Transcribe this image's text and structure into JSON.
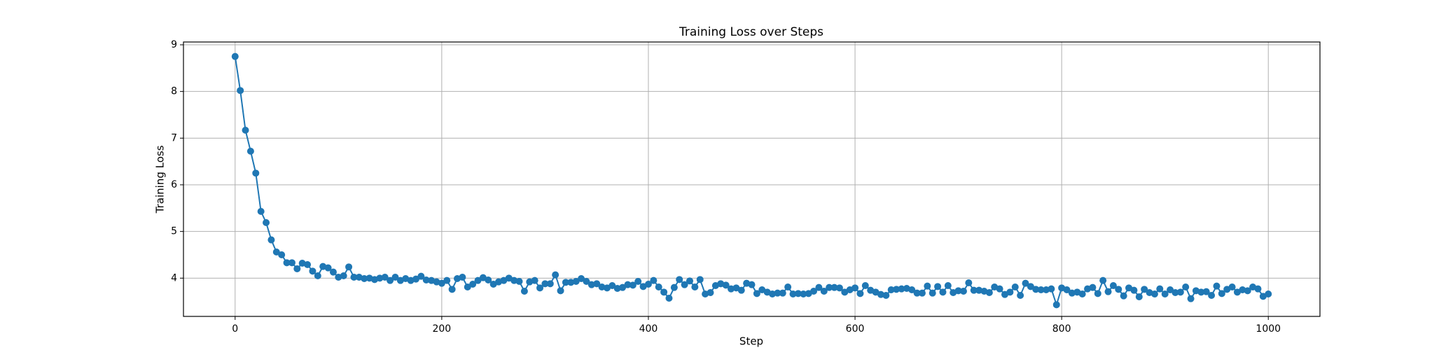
{
  "chart_data": {
    "type": "line",
    "title": "Training Loss over Steps",
    "xlabel": "Step",
    "ylabel": "Training Loss",
    "color": "#1f77b4",
    "grid": true,
    "markers": true,
    "xlim": [
      -50,
      1050
    ],
    "ylim": [
      3.18,
      9.06
    ],
    "xticks": [
      0,
      200,
      400,
      600,
      800,
      1000
    ],
    "yticks": [
      4,
      5,
      6,
      7,
      8,
      9
    ],
    "x": [
      0,
      5,
      10,
      15,
      20,
      25,
      30,
      35,
      40,
      45,
      50,
      55,
      60,
      65,
      70,
      75,
      80,
      85,
      90,
      95,
      100,
      105,
      110,
      115,
      120,
      125,
      130,
      135,
      140,
      145,
      150,
      155,
      160,
      165,
      170,
      175,
      180,
      185,
      190,
      195,
      200,
      205,
      210,
      215,
      220,
      225,
      230,
      235,
      240,
      245,
      250,
      255,
      260,
      265,
      270,
      275,
      280,
      285,
      290,
      295,
      300,
      305,
      310,
      315,
      320,
      325,
      330,
      335,
      340,
      345,
      350,
      355,
      360,
      365,
      370,
      375,
      380,
      385,
      390,
      395,
      400,
      405,
      410,
      415,
      420,
      425,
      430,
      435,
      440,
      445,
      450,
      455,
      460,
      465,
      470,
      475,
      480,
      485,
      490,
      495,
      500,
      505,
      510,
      515,
      520,
      525,
      530,
      535,
      540,
      545,
      550,
      555,
      560,
      565,
      570,
      575,
      580,
      585,
      590,
      595,
      600,
      605,
      610,
      615,
      620,
      625,
      630,
      635,
      640,
      645,
      650,
      655,
      660,
      665,
      670,
      675,
      680,
      685,
      690,
      695,
      700,
      705,
      710,
      715,
      720,
      725,
      730,
      735,
      740,
      745,
      750,
      755,
      760,
      765,
      770,
      775,
      780,
      785,
      790,
      795,
      800,
      805,
      810,
      815,
      820,
      825,
      830,
      835,
      840,
      845,
      850,
      855,
      860,
      865,
      870,
      875,
      880,
      885,
      890,
      895,
      900,
      905,
      910,
      915,
      920,
      925,
      930,
      935,
      940,
      945,
      950,
      955,
      960,
      965,
      970,
      975,
      980,
      985,
      990,
      995,
      1000
    ],
    "values": [
      8.75,
      8.02,
      7.17,
      6.72,
      6.25,
      5.43,
      5.19,
      4.82,
      4.56,
      4.5,
      4.33,
      4.33,
      4.2,
      4.32,
      4.29,
      4.15,
      4.05,
      4.25,
      4.22,
      4.13,
      4.02,
      4.05,
      4.24,
      4.02,
      4.02,
      3.99,
      4.0,
      3.97,
      4.0,
      4.02,
      3.95,
      4.02,
      3.95,
      3.99,
      3.95,
      3.98,
      4.04,
      3.96,
      3.95,
      3.92,
      3.89,
      3.95,
      3.76,
      3.99,
      4.02,
      3.81,
      3.87,
      3.95,
      4.01,
      3.96,
      3.87,
      3.92,
      3.95,
      4.0,
      3.95,
      3.93,
      3.72,
      3.92,
      3.95,
      3.79,
      3.88,
      3.88,
      4.07,
      3.73,
      3.91,
      3.91,
      3.93,
      3.99,
      3.93,
      3.86,
      3.88,
      3.81,
      3.79,
      3.84,
      3.78,
      3.8,
      3.86,
      3.85,
      3.93,
      3.82,
      3.87,
      3.95,
      3.81,
      3.7,
      3.57,
      3.8,
      3.97,
      3.86,
      3.94,
      3.81,
      3.97,
      3.66,
      3.69,
      3.84,
      3.88,
      3.85,
      3.77,
      3.79,
      3.74,
      3.89,
      3.86,
      3.67,
      3.75,
      3.7,
      3.66,
      3.68,
      3.68,
      3.81,
      3.66,
      3.67,
      3.66,
      3.67,
      3.72,
      3.8,
      3.72,
      3.8,
      3.8,
      3.79,
      3.7,
      3.75,
      3.79,
      3.67,
      3.84,
      3.74,
      3.7,
      3.65,
      3.63,
      3.75,
      3.76,
      3.77,
      3.78,
      3.75,
      3.68,
      3.68,
      3.83,
      3.68,
      3.82,
      3.7,
      3.84,
      3.69,
      3.73,
      3.72,
      3.9,
      3.74,
      3.74,
      3.72,
      3.69,
      3.81,
      3.77,
      3.65,
      3.7,
      3.81,
      3.63,
      3.89,
      3.82,
      3.76,
      3.75,
      3.75,
      3.77,
      3.43,
      3.79,
      3.75,
      3.68,
      3.7,
      3.66,
      3.77,
      3.8,
      3.67,
      3.95,
      3.71,
      3.84,
      3.76,
      3.62,
      3.79,
      3.74,
      3.6,
      3.76,
      3.69,
      3.66,
      3.77,
      3.66,
      3.75,
      3.69,
      3.7,
      3.81,
      3.56,
      3.73,
      3.7,
      3.71,
      3.63,
      3.83,
      3.67,
      3.76,
      3.81,
      3.7,
      3.75,
      3.73,
      3.81,
      3.77,
      3.61,
      3.66
    ]
  }
}
